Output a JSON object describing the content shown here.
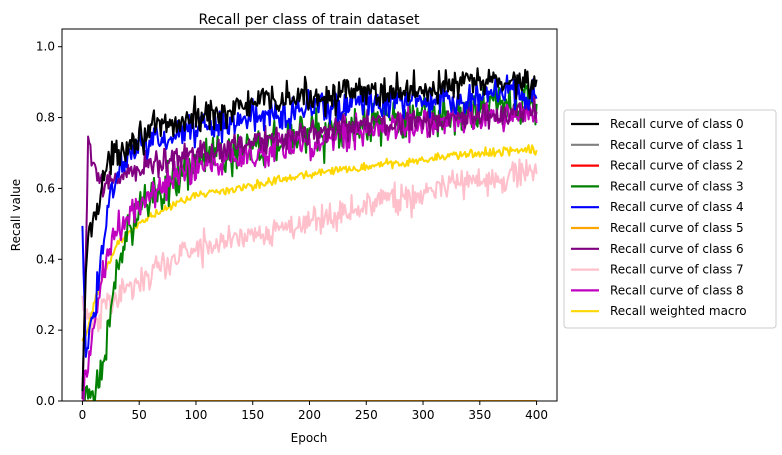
{
  "chart_data": {
    "type": "line",
    "title": "Recall per class of train dataset",
    "xlabel": "Epoch",
    "ylabel": "Recall value",
    "xlim": [
      -18,
      418
    ],
    "ylim": [
      0.0,
      1.05
    ],
    "xticks": [
      0,
      50,
      100,
      150,
      200,
      250,
      300,
      350,
      400
    ],
    "yticks": [
      0.0,
      0.2,
      0.4,
      0.6,
      0.8,
      1.0
    ],
    "xtick_labels": [
      "0",
      "50",
      "100",
      "150",
      "200",
      "250",
      "300",
      "350",
      "400"
    ],
    "ytick_labels": [
      "0.0",
      "0.2",
      "0.4",
      "0.6",
      "0.8",
      "1.0"
    ],
    "grid": false,
    "legend_position": "outside-right",
    "series": [
      {
        "name": "Recall curve of class 0",
        "color": "#000000",
        "noise": 0.022,
        "points": [
          [
            0,
            0.0
          ],
          [
            3,
            0.38
          ],
          [
            6,
            0.47
          ],
          [
            10,
            0.52
          ],
          [
            15,
            0.58
          ],
          [
            20,
            0.65
          ],
          [
            30,
            0.7
          ],
          [
            40,
            0.73
          ],
          [
            50,
            0.75
          ],
          [
            70,
            0.77
          ],
          [
            100,
            0.8
          ],
          [
            130,
            0.82
          ],
          [
            150,
            0.84
          ],
          [
            200,
            0.86
          ],
          [
            250,
            0.87
          ],
          [
            300,
            0.88
          ],
          [
            350,
            0.9
          ],
          [
            400,
            0.905
          ]
        ]
      },
      {
        "name": "Recall curve of class 1",
        "color": "#808080",
        "noise": 0,
        "points": [
          [
            0,
            0.0
          ],
          [
            400,
            0.0
          ]
        ]
      },
      {
        "name": "Recall curve of class 2",
        "color": "#ff0000",
        "noise": 0,
        "points": [
          [
            0,
            0.0
          ],
          [
            400,
            0.0
          ]
        ]
      },
      {
        "name": "Recall curve of class 3",
        "color": "#008000",
        "noise": 0.03,
        "points": [
          [
            0,
            0.0
          ],
          [
            10,
            0.0
          ],
          [
            20,
            0.15
          ],
          [
            30,
            0.35
          ],
          [
            40,
            0.47
          ],
          [
            50,
            0.55
          ],
          [
            60,
            0.58
          ],
          [
            80,
            0.63
          ],
          [
            100,
            0.67
          ],
          [
            150,
            0.72
          ],
          [
            200,
            0.75
          ],
          [
            250,
            0.78
          ],
          [
            300,
            0.8
          ],
          [
            350,
            0.82
          ],
          [
            400,
            0.84
          ]
        ]
      },
      {
        "name": "Recall curve of class 4",
        "color": "#0000ff",
        "noise": 0.022,
        "points": [
          [
            0,
            0.51
          ],
          [
            3,
            0.14
          ],
          [
            8,
            0.2
          ],
          [
            12,
            0.28
          ],
          [
            18,
            0.45
          ],
          [
            25,
            0.6
          ],
          [
            35,
            0.67
          ],
          [
            50,
            0.72
          ],
          [
            80,
            0.75
          ],
          [
            100,
            0.77
          ],
          [
            150,
            0.8
          ],
          [
            200,
            0.83
          ],
          [
            250,
            0.84
          ],
          [
            300,
            0.85
          ],
          [
            350,
            0.86
          ],
          [
            400,
            0.87
          ]
        ]
      },
      {
        "name": "Recall curve of class 5",
        "color": "#ffa500",
        "noise": 0,
        "points": [
          [
            0,
            0.0
          ],
          [
            400,
            0.0
          ]
        ]
      },
      {
        "name": "Recall curve of class 6",
        "color": "#800080",
        "noise": 0.018,
        "points": [
          [
            0,
            0.0
          ],
          [
            2,
            0.28
          ],
          [
            5,
            0.72
          ],
          [
            8,
            0.68
          ],
          [
            15,
            0.63
          ],
          [
            20,
            0.6
          ],
          [
            30,
            0.63
          ],
          [
            50,
            0.66
          ],
          [
            100,
            0.7
          ],
          [
            150,
            0.73
          ],
          [
            200,
            0.76
          ],
          [
            250,
            0.78
          ],
          [
            300,
            0.79
          ],
          [
            350,
            0.8
          ],
          [
            400,
            0.82
          ]
        ]
      },
      {
        "name": "Recall curve of class 7",
        "color": "#ffc0cb",
        "noise": 0.022,
        "points": [
          [
            0,
            0.28
          ],
          [
            5,
            0.22
          ],
          [
            10,
            0.22
          ],
          [
            20,
            0.27
          ],
          [
            40,
            0.32
          ],
          [
            60,
            0.36
          ],
          [
            80,
            0.4
          ],
          [
            100,
            0.43
          ],
          [
            150,
            0.47
          ],
          [
            200,
            0.51
          ],
          [
            250,
            0.55
          ],
          [
            300,
            0.59
          ],
          [
            350,
            0.62
          ],
          [
            400,
            0.66
          ]
        ]
      },
      {
        "name": "Recall curve of class 8",
        "color": "#bf00bf",
        "noise": 0.022,
        "points": [
          [
            0,
            0.0
          ],
          [
            8,
            0.15
          ],
          [
            15,
            0.32
          ],
          [
            25,
            0.45
          ],
          [
            40,
            0.53
          ],
          [
            50,
            0.56
          ],
          [
            80,
            0.63
          ],
          [
            100,
            0.66
          ],
          [
            150,
            0.7
          ],
          [
            200,
            0.73
          ],
          [
            250,
            0.76
          ],
          [
            300,
            0.78
          ],
          [
            350,
            0.8
          ],
          [
            400,
            0.82
          ]
        ]
      },
      {
        "name": "Recall weighted macro",
        "color": "#ffd700",
        "noise": 0.006,
        "points": [
          [
            0,
            0.17
          ],
          [
            5,
            0.2
          ],
          [
            10,
            0.27
          ],
          [
            20,
            0.37
          ],
          [
            30,
            0.44
          ],
          [
            50,
            0.5
          ],
          [
            75,
            0.55
          ],
          [
            100,
            0.58
          ],
          [
            150,
            0.61
          ],
          [
            200,
            0.64
          ],
          [
            250,
            0.66
          ],
          [
            300,
            0.68
          ],
          [
            350,
            0.7
          ],
          [
            400,
            0.71
          ]
        ]
      }
    ]
  }
}
